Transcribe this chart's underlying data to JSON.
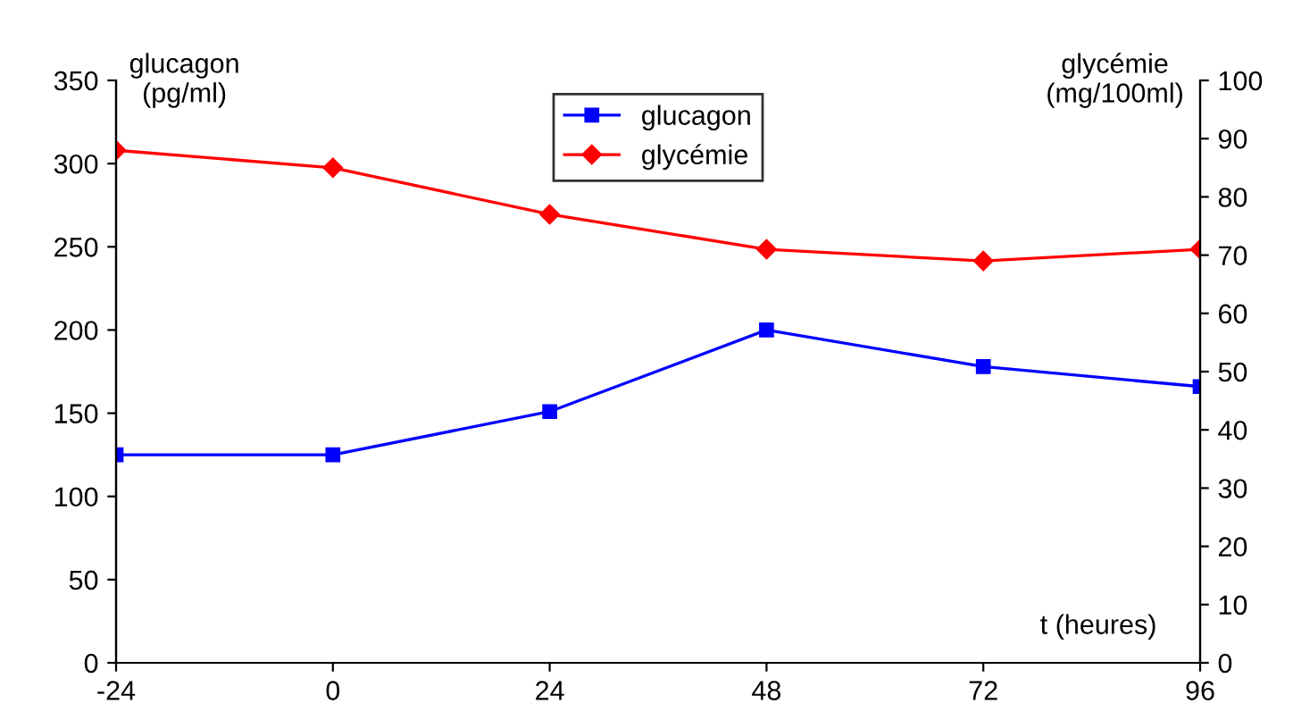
{
  "chart_data": {
    "type": "line",
    "ylabel": "glucagon\n(pg/ml)",
    "y2label": "glycémie\n(mg/100ml)",
    "xlabel": "t (heures)",
    "x": [
      -24,
      0,
      24,
      48,
      72,
      96
    ],
    "xlim": [
      -24,
      96
    ],
    "xticks": [
      -24,
      0,
      24,
      48,
      72,
      96
    ],
    "ylim": [
      0,
      350
    ],
    "yticks": [
      0,
      50,
      100,
      150,
      200,
      250,
      300,
      350
    ],
    "y2lim": [
      0,
      100
    ],
    "y2ticks": [
      0,
      10,
      20,
      30,
      40,
      50,
      60,
      70,
      80,
      90,
      100
    ],
    "grid": false,
    "legend": "top",
    "line_style": "solid",
    "series": [
      {
        "name": "glucagon",
        "color": "#0000ff",
        "marker": "square",
        "values": [
          125,
          125,
          151,
          200,
          178,
          166
        ]
      },
      {
        "name": "glycémie",
        "color": "#ff0000",
        "marker": "diamond",
        "axis": "y2",
        "values": [
          88,
          85,
          77,
          71,
          69,
          71
        ]
      }
    ]
  }
}
